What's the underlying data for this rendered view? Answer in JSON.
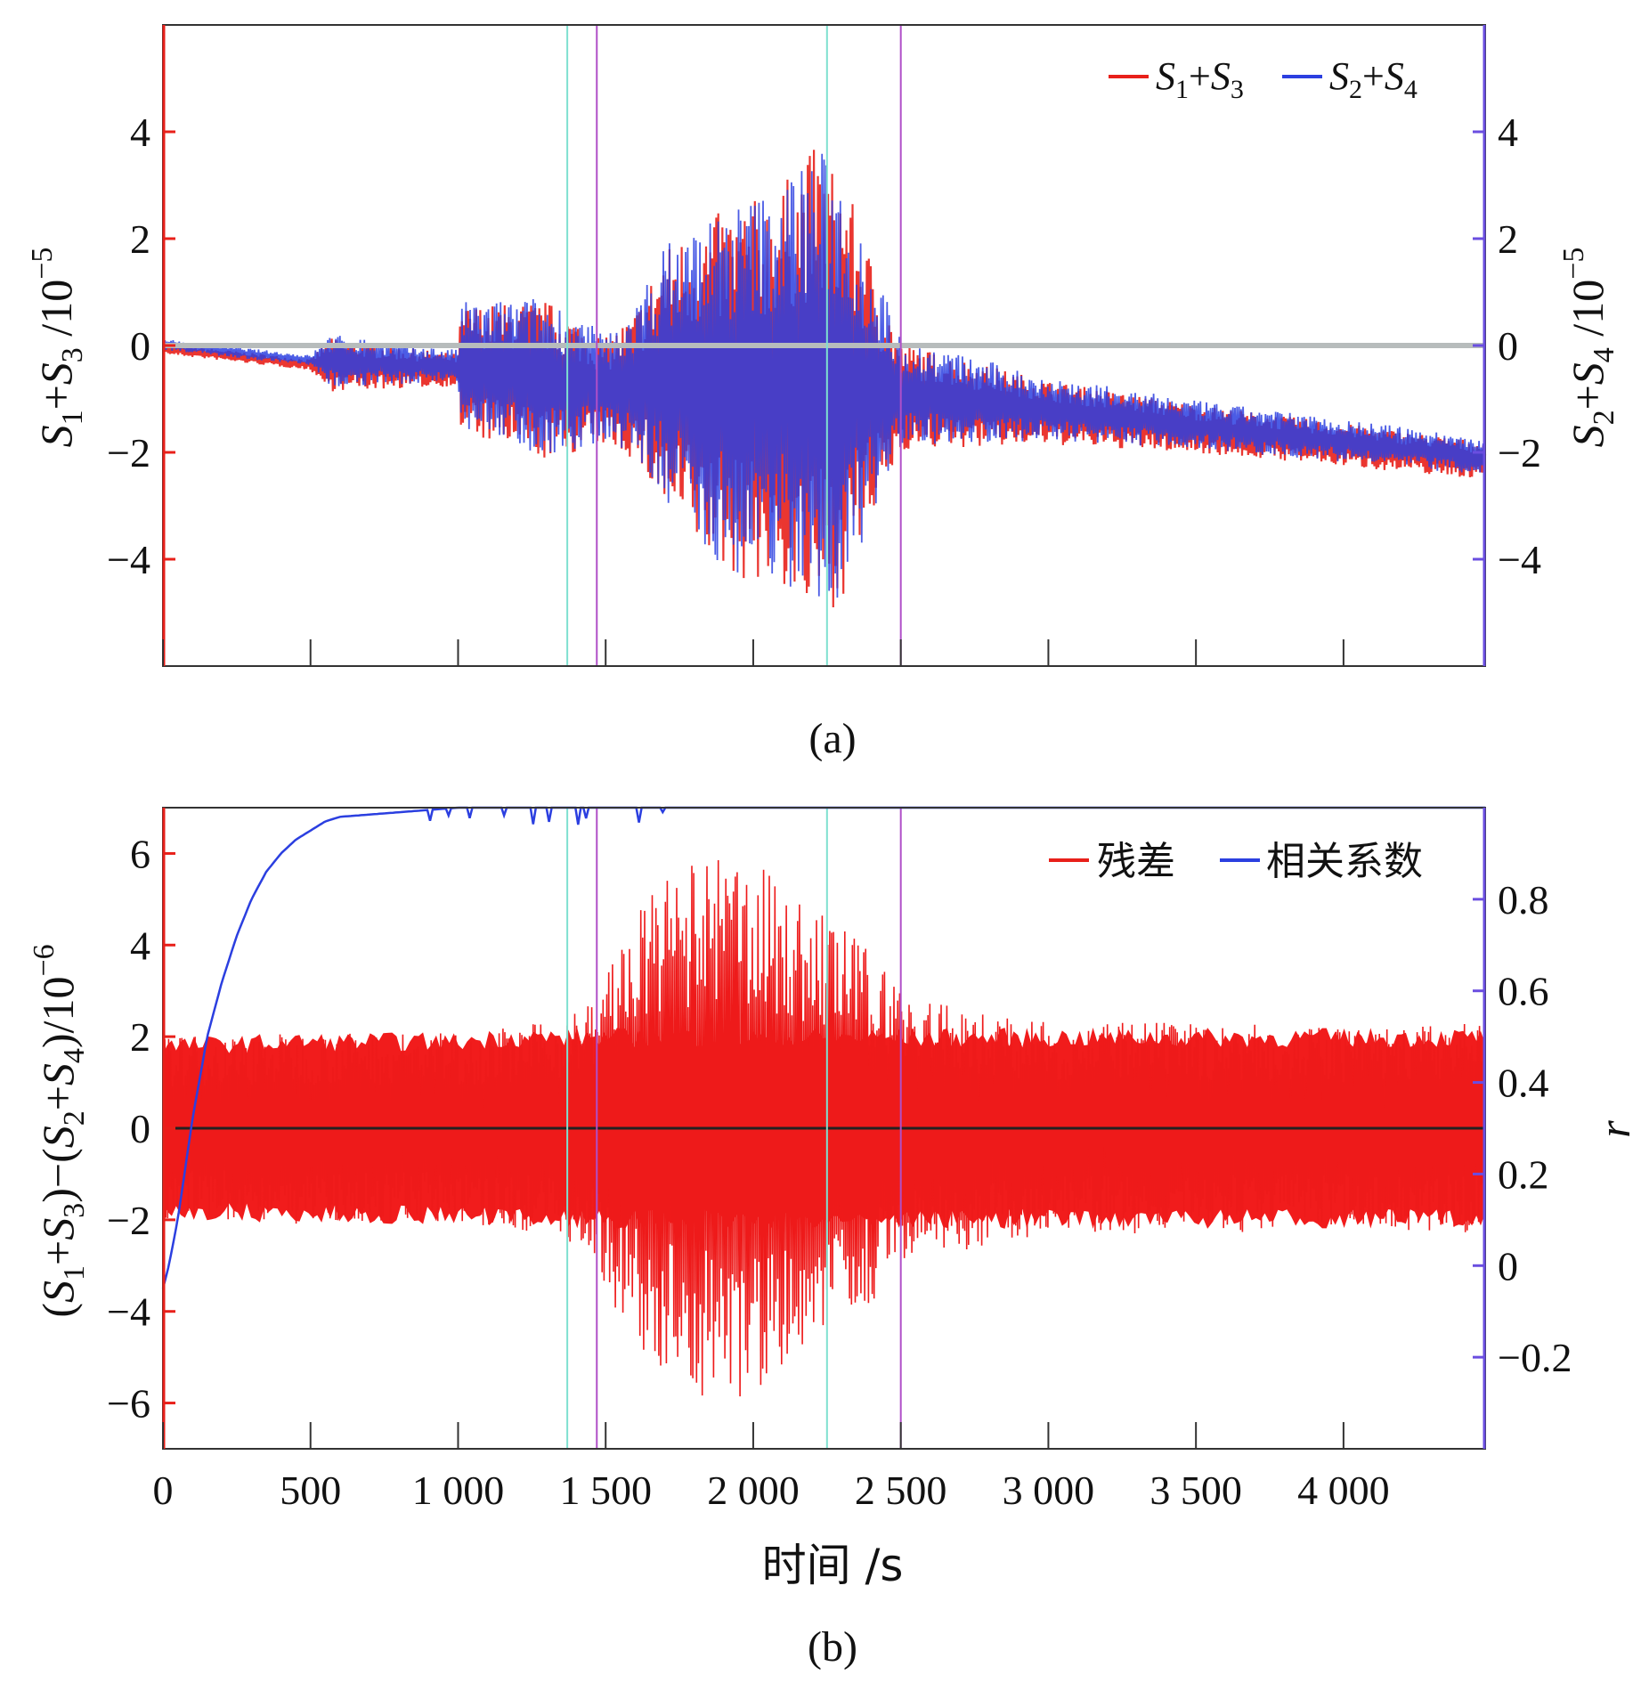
{
  "chart_data": [
    {
      "type": "line",
      "panel_caption": "(a)",
      "title": "",
      "xlabel": "",
      "ylabel_left": "S1+S3 /10^-5",
      "ylabel_right": "S2+S4 /10^-5",
      "xlim": [
        0,
        4480
      ],
      "ylim_left": [
        -6,
        6
      ],
      "ylim_right": [
        -6,
        6
      ],
      "yticks_left": [
        "4",
        "2",
        "0",
        "−2",
        "−4"
      ],
      "yticks_right": [
        "4",
        "2",
        "0",
        "−2",
        "−4"
      ],
      "ytick_values": [
        4,
        2,
        0,
        -2,
        -4
      ],
      "xtick_values": [
        0,
        500,
        1000,
        1500,
        2000,
        2500,
        3000,
        3500,
        4000
      ],
      "vertical_markers": [
        {
          "x": 1370,
          "color": "#7fe0d0"
        },
        {
          "x": 1470,
          "color": "#b04fc8"
        },
        {
          "x": 2250,
          "color": "#7fe0d0"
        },
        {
          "x": 2500,
          "color": "#b04fc8"
        }
      ],
      "legend": [
        {
          "label": "S1+S3",
          "color": "#e8201a"
        },
        {
          "label": "S2+S4",
          "color": "#2b3fe0"
        }
      ],
      "series_envelope": {
        "description": "oscillating signals (sampled envelope, values in 10^-5)",
        "x": [
          0,
          500,
          560,
          1000,
          1010,
          1300,
          1500,
          1600,
          1700,
          1800,
          1900,
          2000,
          2100,
          2200,
          2300,
          2400,
          2500,
          3000,
          3500,
          4000,
          4480
        ],
        "center": [
          0.0,
          -0.3,
          -0.3,
          -0.4,
          -0.4,
          -0.6,
          -0.8,
          -0.7,
          -0.6,
          -0.7,
          -0.8,
          -0.8,
          -0.7,
          -0.7,
          -0.7,
          -0.8,
          -0.9,
          -1.2,
          -1.5,
          -1.8,
          -2.1
        ],
        "amplitude": [
          0.1,
          0.1,
          0.5,
          0.3,
          1.2,
          1.5,
          1.0,
          1.4,
          2.5,
          3.0,
          3.4,
          3.6,
          3.8,
          4.5,
          4.0,
          2.5,
          1.0,
          0.6,
          0.45,
          0.4,
          0.35
        ]
      }
    },
    {
      "type": "line",
      "panel_caption": "(b)",
      "title": "",
      "xlabel": "时间 /s",
      "ylabel_left": "(S1+S3)−(S2+S4)/10^-6",
      "ylabel_right": "r",
      "xlim": [
        0,
        4480
      ],
      "ylim_left": [
        -7,
        7
      ],
      "ylim_right": [
        -0.4,
        1.0
      ],
      "yticks_left": [
        "6",
        "4",
        "2",
        "0",
        "−2",
        "−4",
        "−6"
      ],
      "ytick_values_left": [
        6,
        4,
        2,
        0,
        -2,
        -4,
        -6
      ],
      "yticks_right": [
        "0.8",
        "0.6",
        "0.4",
        "0.2",
        "0",
        "−0.2"
      ],
      "ytick_values_right": [
        0.8,
        0.6,
        0.4,
        0.2,
        0,
        -0.2
      ],
      "xtick_labels": [
        "0",
        "500",
        "1 000",
        "1 500",
        "2 000",
        "2 500",
        "3 000",
        "3 500",
        "4 000"
      ],
      "xtick_values": [
        0,
        500,
        1000,
        1500,
        2000,
        2500,
        3000,
        3500,
        4000
      ],
      "vertical_markers": [
        {
          "x": 1370,
          "color": "#7fe0d0"
        },
        {
          "x": 1470,
          "color": "#b04fc8"
        },
        {
          "x": 2250,
          "color": "#7fe0d0"
        },
        {
          "x": 2500,
          "color": "#b04fc8"
        }
      ],
      "legend": [
        {
          "label": "残差",
          "color": "#e8201a"
        },
        {
          "label": "相关系数",
          "color": "#2b3fe0"
        }
      ],
      "residual_envelope": {
        "description": "residual amplitude envelope (values in 10^-6)",
        "x": [
          0,
          500,
          1000,
          1300,
          1450,
          1550,
          1700,
          1850,
          2000,
          2150,
          2300,
          2450,
          2600,
          3000,
          3500,
          4000,
          4480
        ],
        "amplitude": [
          2.0,
          2.1,
          2.1,
          2.3,
          2.8,
          4.2,
          5.5,
          5.9,
          5.9,
          5.0,
          4.5,
          3.5,
          2.8,
          2.3,
          2.3,
          2.2,
          2.3
        ]
      },
      "correlation_series": {
        "description": "correlation coefficient r over time",
        "x": [
          0,
          20,
          50,
          100,
          150,
          200,
          250,
          300,
          350,
          400,
          450,
          500,
          550,
          600,
          800,
          1000,
          1500,
          2000,
          2500,
          3000,
          4480
        ],
        "r": [
          -0.05,
          0.0,
          0.1,
          0.32,
          0.5,
          0.62,
          0.72,
          0.8,
          0.86,
          0.9,
          0.93,
          0.95,
          0.97,
          0.98,
          0.99,
          1.0,
          1.0,
          1.0,
          1.0,
          1.0,
          1.0
        ]
      }
    }
  ]
}
